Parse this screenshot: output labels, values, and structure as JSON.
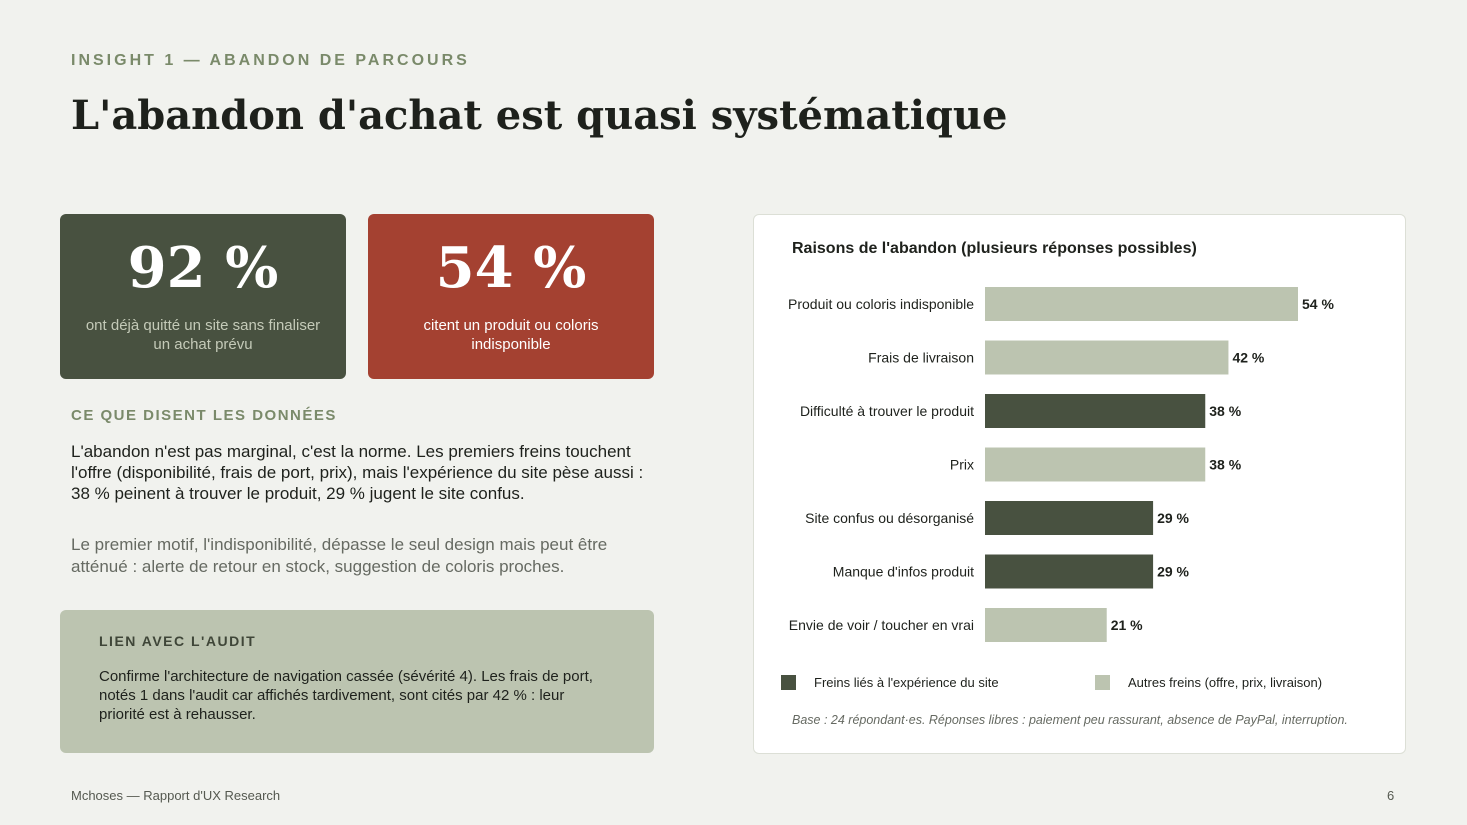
{
  "header": {
    "eyebrow": "INSIGHT 1 — ABANDON DE PARCOURS",
    "title": "L'abandon d'achat est quasi systématique"
  },
  "stats": [
    {
      "value": "92 %",
      "caption": "ont déjà quitté un site sans finaliser un achat prévu",
      "color": "#485140"
    },
    {
      "value": "54 %",
      "caption": "citent un produit ou coloris indisponible",
      "color": "#a44131"
    }
  ],
  "data_section": {
    "label": "CE QUE DISENT LES DONNÉES",
    "paragraph1": "L'abandon n'est pas marginal, c'est la norme. Les premiers freins touchent l'offre (disponibilité, frais de port, prix), mais l'expérience du site pèse aussi : 38 % peinent à trouver le produit, 29 % jugent le site confus.",
    "paragraph2": "Le premier motif, l'indisponibilité, dépasse le seul design mais peut être atténué : alerte de retour en stock, suggestion de coloris proches."
  },
  "audit": {
    "label": "LIEN AVEC L'AUDIT",
    "text": "Confirme l'architecture de navigation cassée (sévérité 4). Les frais de port, notés 1 dans l'audit car affichés tardivement, sont cités par 42 % : leur priorité est à rehausser."
  },
  "chart_data": {
    "type": "bar",
    "orientation": "horizontal",
    "title": "Raisons de l'abandon (plusieurs réponses possibles)",
    "categories": [
      "Produit ou coloris indisponible",
      "Frais de livraison",
      "Difficulté à trouver le produit",
      "Prix",
      "Site confus ou désorganisé",
      "Manque d'infos produit",
      "Envie de voir / toucher en vrai"
    ],
    "values": [
      54,
      42,
      38,
      38,
      29,
      29,
      21
    ],
    "value_labels": [
      "54 %",
      "42 %",
      "38 %",
      "38 %",
      "29 %",
      "29 %",
      "21 %"
    ],
    "groups": [
      "other",
      "other",
      "site",
      "other",
      "site",
      "site",
      "other"
    ],
    "colors": {
      "site": "#485140",
      "other": "#bcc4b0"
    },
    "legend": [
      {
        "key": "site",
        "label": "Freins liés à l'expérience du site"
      },
      {
        "key": "other",
        "label": "Autres freins (offre, prix, livraison)"
      }
    ],
    "legend_position": "bottom",
    "xlim": [
      0,
      54
    ],
    "grid": false,
    "xlabel": "",
    "ylabel": "",
    "base_note": "Base : 24 répondant·es. Réponses libres : paiement peu rassurant, absence de PayPal, interruption."
  },
  "footer": {
    "left": "Mchoses — Rapport d'UX Research",
    "page": "6"
  }
}
